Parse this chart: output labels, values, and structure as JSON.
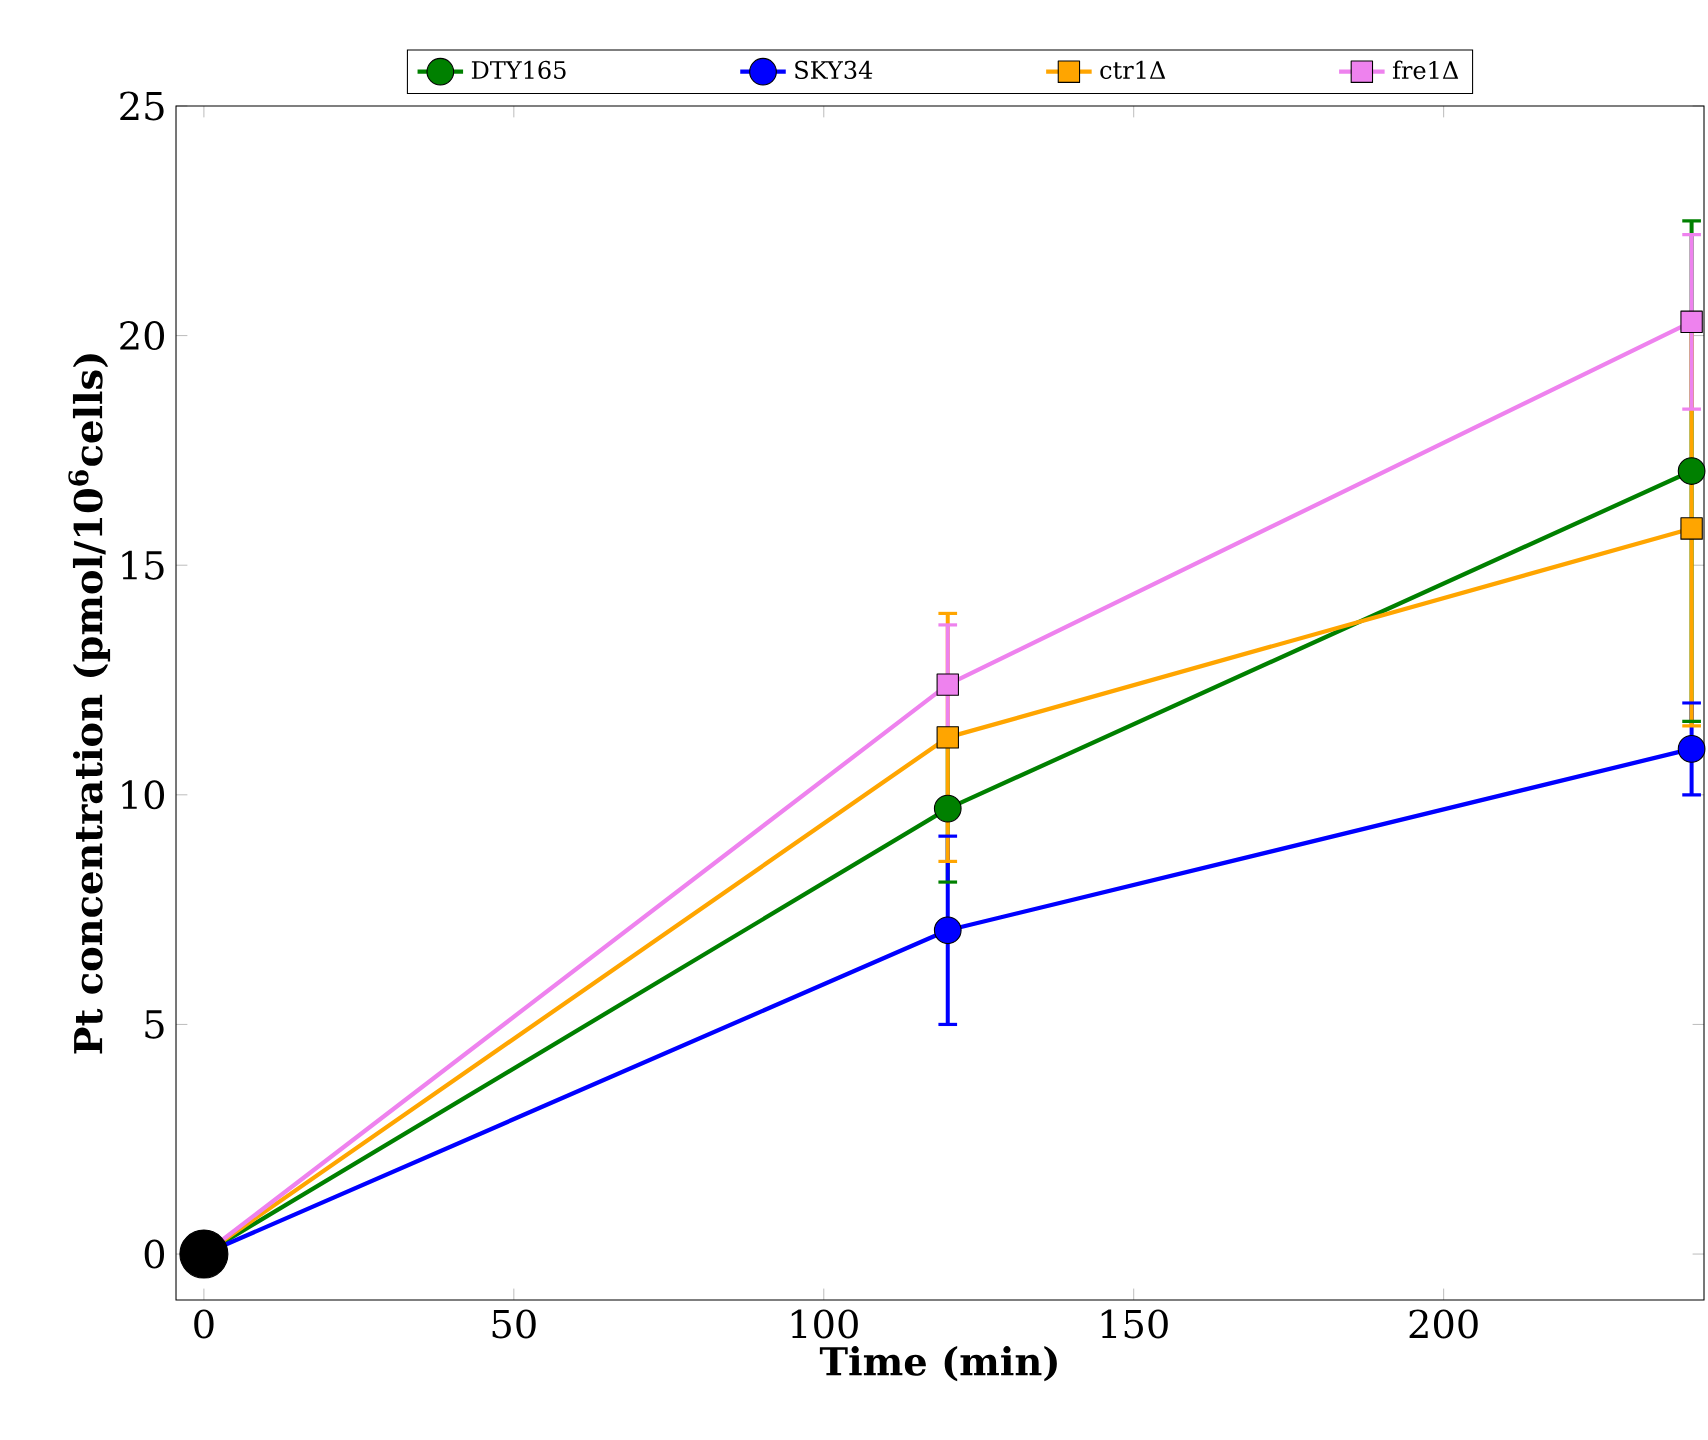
{
  "chart_data": {
    "type": "line",
    "xlabel": "Time (min)",
    "ylabel": "Pt concentration (pmol/10$^{6}$cells)",
    "x": [
      0,
      120,
      240
    ],
    "xlim": [
      -4.5,
      242
    ],
    "xticks": [
      0,
      50,
      100,
      150,
      200
    ],
    "ylim": [
      -1,
      25
    ],
    "yticks": [
      0,
      5,
      10,
      15,
      20,
      25
    ],
    "grid": false,
    "legend": "top",
    "series": [
      {
        "name": "DTY165",
        "color": "#008000",
        "marker": "circle",
        "values": [
          0,
          9.7,
          17.05
        ],
        "errors": [
          null,
          1.6,
          5.45
        ]
      },
      {
        "name": "SKY34",
        "color": "#0000ff",
        "marker": "circle",
        "values": [
          0,
          7.05,
          11.0
        ],
        "errors": [
          null,
          2.05,
          1.0
        ]
      },
      {
        "name": "ctr1Δ",
        "color": "#ffa500",
        "marker": "square",
        "values": [
          0,
          11.25,
          15.8
        ],
        "errors": [
          null,
          2.7,
          4.3
        ]
      },
      {
        "name": "fre1Δ",
        "color": "#ee82ee",
        "marker": "square",
        "values": [
          0,
          12.4,
          20.3
        ],
        "errors": [
          null,
          1.3,
          1.9
        ]
      },
      {
        "type": "scatter",
        "color": "#000000",
        "marker": "circle",
        "x": [
          0
        ],
        "values": [
          0
        ]
      }
    ]
  }
}
